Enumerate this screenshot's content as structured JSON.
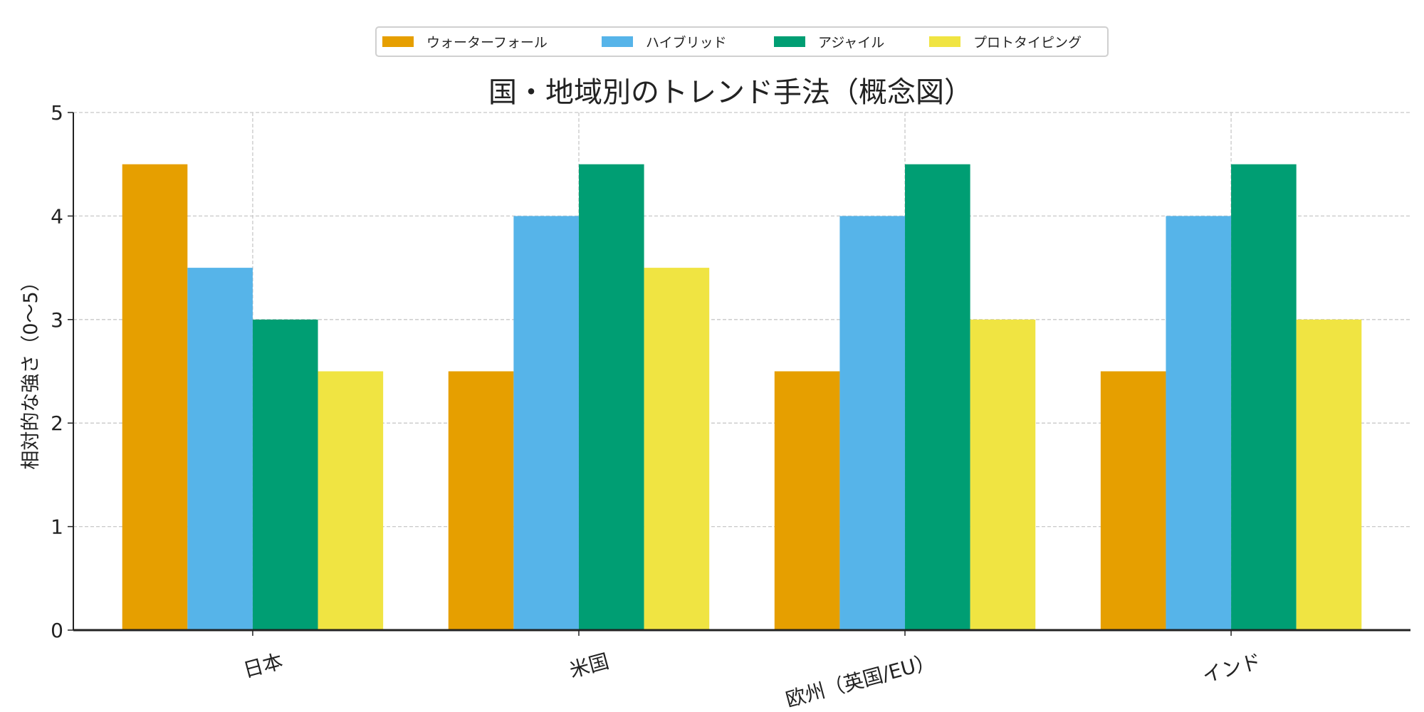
{
  "chart_data": {
    "type": "bar",
    "title": "国・地域別のトレンド手法（概念図）",
    "xlabel": "",
    "ylabel": "相対的な強さ（0〜5）",
    "categories": [
      "日本",
      "米国",
      "欧州（英国/EU）",
      "インド"
    ],
    "series": [
      {
        "name": "ウォーターフォール",
        "color": "#E69F00",
        "values": [
          4.5,
          2.5,
          2.5,
          2.5
        ]
      },
      {
        "name": "ハイブリッド",
        "color": "#56B4E9",
        "values": [
          3.5,
          4.0,
          4.0,
          4.0
        ]
      },
      {
        "name": "アジャイル",
        "color": "#009E73",
        "values": [
          3.0,
          4.5,
          4.5,
          4.5
        ]
      },
      {
        "name": "プロトタイピング",
        "color": "#F0E442",
        "values": [
          2.5,
          3.5,
          3.0,
          3.0
        ]
      }
    ],
    "ylim": [
      0,
      5
    ],
    "yticks": [
      "0",
      "1",
      "2",
      "3",
      "4",
      "5"
    ],
    "grid": true,
    "legend_placement": "top-center"
  }
}
